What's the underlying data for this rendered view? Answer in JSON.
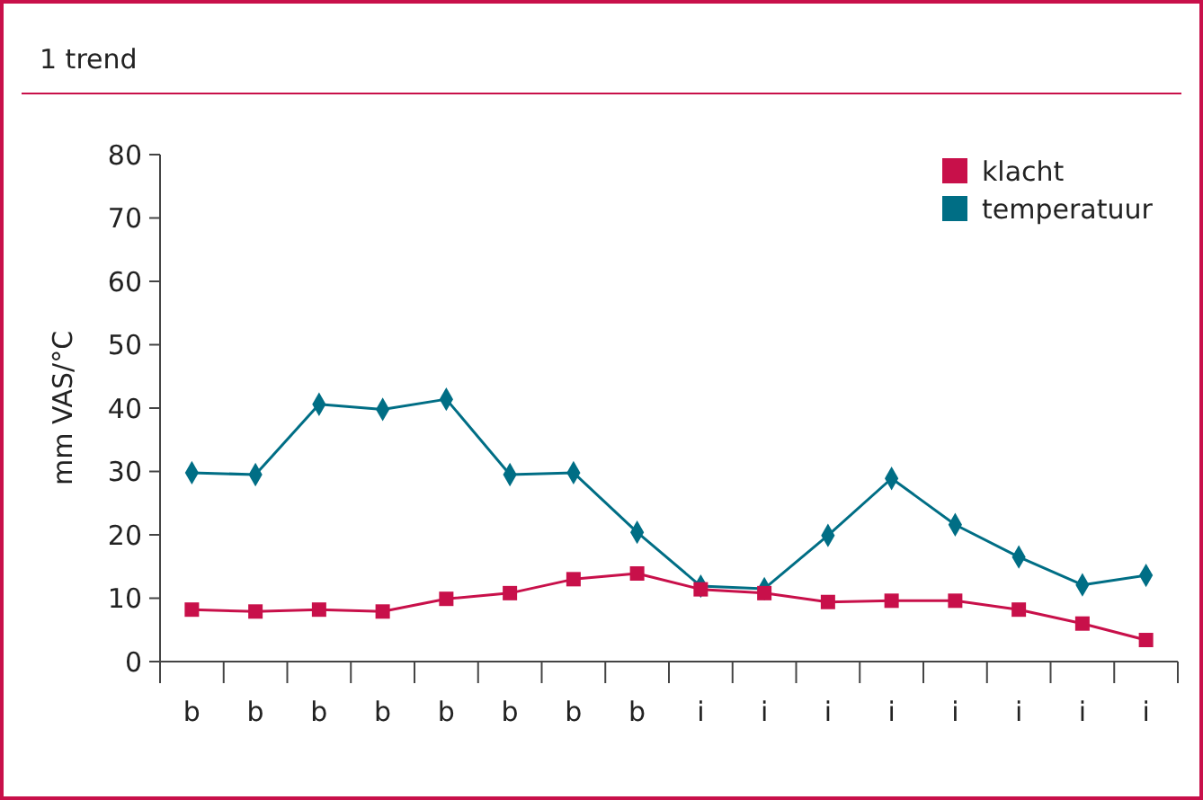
{
  "chart_data": {
    "type": "line",
    "title": "1 trend",
    "ylabel": "mm VAS/°C",
    "categories": [
      "b",
      "b",
      "b",
      "b",
      "b",
      "b",
      "b",
      "b",
      "i",
      "i",
      "i",
      "i",
      "i",
      "i",
      "i",
      "i"
    ],
    "series": [
      {
        "name": "klacht",
        "color": "#c8104a",
        "marker": "square",
        "values": [
          8.2,
          7.9,
          8.2,
          7.9,
          9.9,
          10.8,
          13,
          13.9,
          11.4,
          10.8,
          9.4,
          9.6,
          9.6,
          8.2,
          6,
          3.4
        ]
      },
      {
        "name": "temperatuur",
        "color": "#006e85",
        "marker": "diamond",
        "values": [
          29.8,
          29.5,
          40.6,
          39.8,
          41.4,
          29.5,
          29.8,
          20.4,
          11.9,
          11.5,
          19.9,
          28.9,
          21.6,
          16.5,
          12.1,
          13.6
        ]
      }
    ],
    "ylim": [
      0,
      80
    ],
    "yticks": [
      0,
      10,
      20,
      30,
      40,
      50,
      60,
      70,
      80
    ],
    "grid": false,
    "legend": "top right"
  }
}
